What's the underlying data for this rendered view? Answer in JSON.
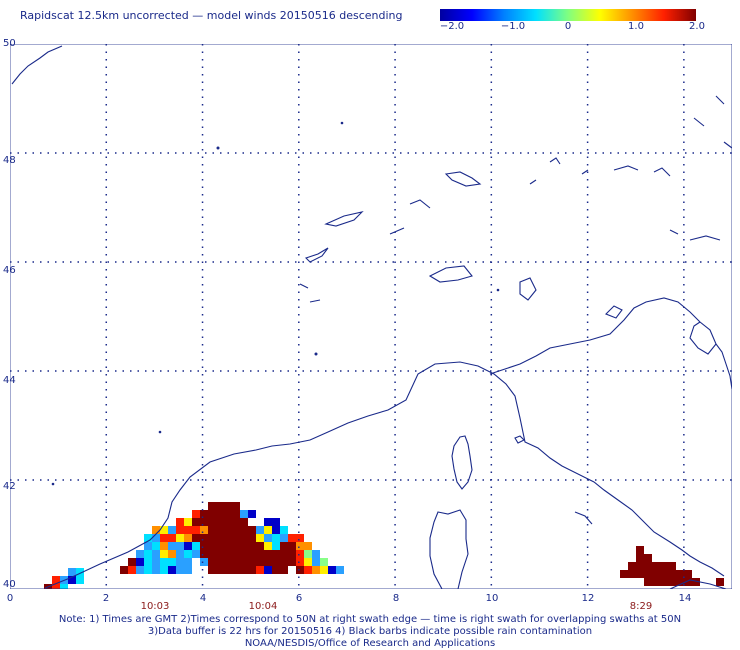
{
  "header": {
    "title": "Rapidscat 12.5km uncorrected — model winds 20150516 descending"
  },
  "colorbar": {
    "labels": [
      "−2.0",
      "−1.0",
      "0",
      "1.0",
      "2.0"
    ],
    "min": -2.0,
    "max": 2.0,
    "colors": [
      "#0000a0",
      "#0000ff",
      "#0080ff",
      "#00e0ff",
      "#80ff80",
      "#ffff00",
      "#ff9000",
      "#ff2000",
      "#800000"
    ]
  },
  "axes": {
    "x_ticks": [
      "0",
      "2",
      "4",
      "6",
      "8",
      "10",
      "12",
      "14"
    ],
    "y_ticks": [
      "40",
      "42",
      "44",
      "46",
      "48",
      "50"
    ],
    "x_range": [
      0,
      15
    ],
    "y_range": [
      40,
      50
    ]
  },
  "swath_times": [
    "10:03",
    "10:04",
    "8:29"
  ],
  "notes": {
    "line1": "Note: 1) Times are GMT 2)Times correspond to 50N at right swath edge — time is right swath for overlapping swaths at 50N",
    "line2": "3)Data buffer is 22 hrs for 20150516 4) Black barbs indicate possible rain contamination",
    "line3": "NOAA/NESDIS/Office of Research and Applications"
  },
  "colors": {
    "coast": "#1a2a8a",
    "grid": "#1a2a8a",
    "time_label": "#8b1a1a"
  }
}
